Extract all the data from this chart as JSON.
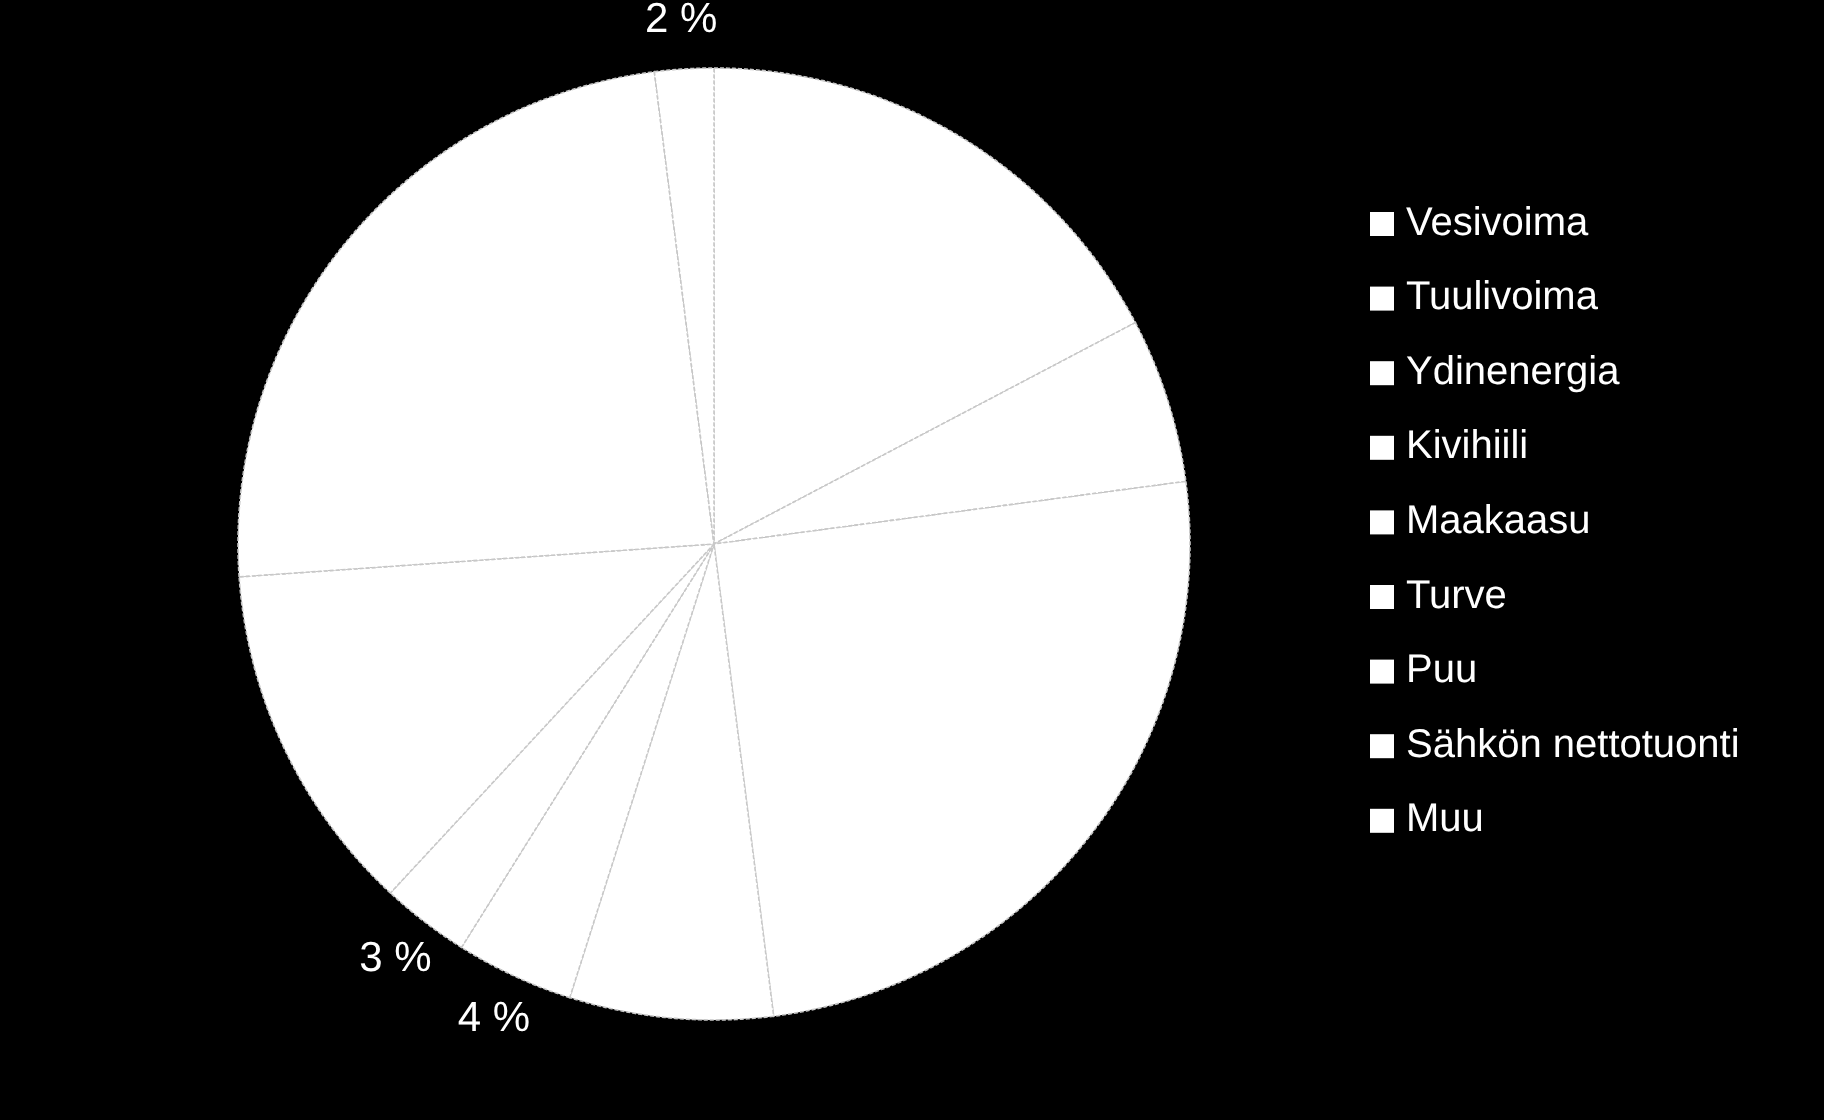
{
  "chart_data": {
    "type": "pie",
    "categories": [
      "Vesivoima",
      "Tuulivoima",
      "Ydinenergia",
      "Kivihiili",
      "Maakaasu",
      "Turve",
      "Puu",
      "Sähkön nettotuonti",
      "Muu"
    ],
    "values": [
      17.3,
      5.6,
      25.1,
      6.9,
      4,
      3,
      12,
      24.1,
      2
    ],
    "colors": [
      "#ffffff",
      "#ffffff",
      "#ffffff",
      "#ffffff",
      "#ffffff",
      "#ffffff",
      "#ffffff",
      "#ffffff",
      "#ffffff"
    ],
    "value_labels": [
      null,
      null,
      null,
      null,
      "4 %",
      "3 %",
      null,
      null,
      "2 %"
    ],
    "legend": "right"
  }
}
